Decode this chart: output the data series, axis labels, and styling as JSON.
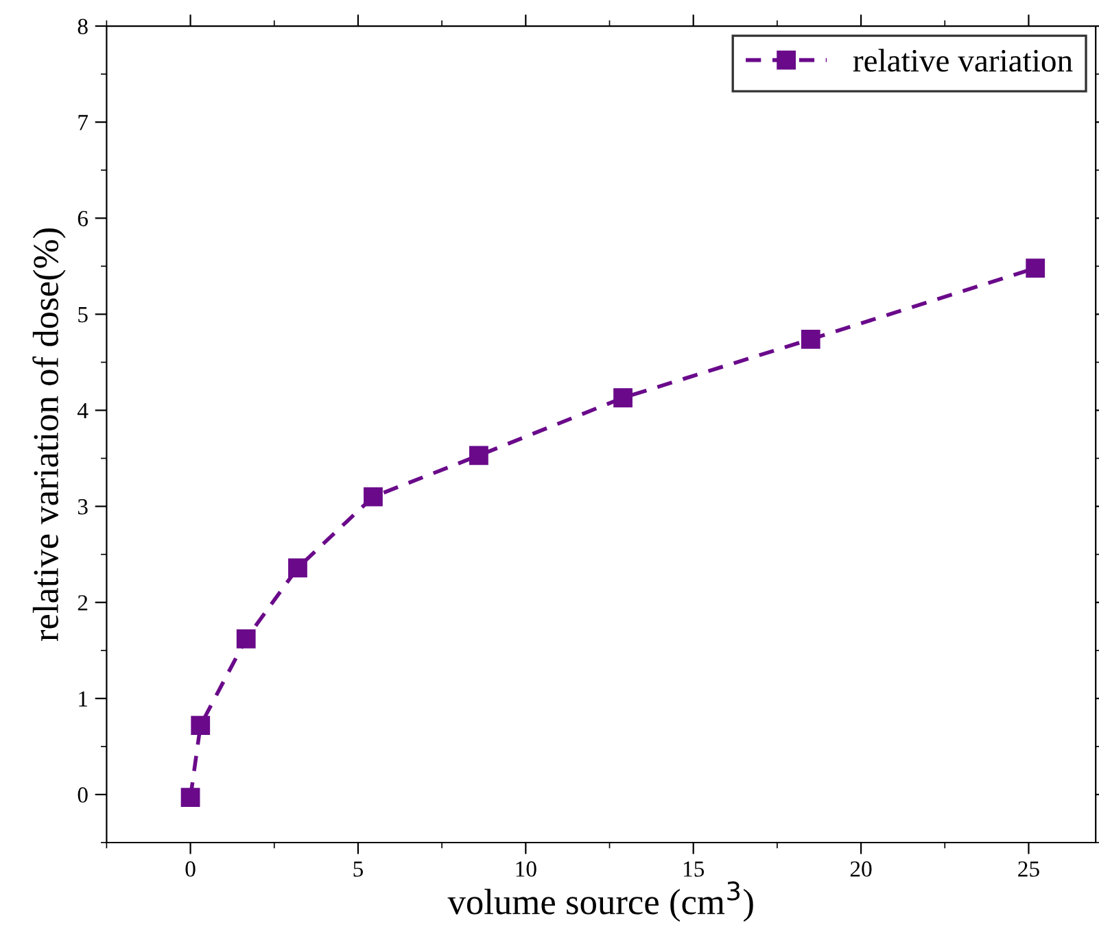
{
  "chart_data": {
    "type": "line",
    "xlabel": "volume source (cm$^{3}$)",
    "ylabel": "relative variation of dose(%)",
    "x": [
      0,
      0.3,
      1.66,
      3.2,
      5.45,
      8.6,
      12.9,
      18.5,
      25.2
    ],
    "series": [
      {
        "name": "relative variation",
        "color": "#6a0a8a",
        "values": [
          -0.03,
          0.72,
          1.62,
          2.36,
          3.1,
          3.53,
          4.13,
          4.74,
          5.48
        ]
      }
    ],
    "xlim": [
      -2.5,
      27
    ],
    "ylim": [
      -0.5,
      8
    ],
    "xticks": [
      0,
      5,
      10,
      15,
      20,
      25
    ],
    "yticks": [
      0,
      1,
      2,
      3,
      4,
      5,
      6,
      7,
      8
    ],
    "grid": false,
    "legend": "top right",
    "marker": "square",
    "line_style": "dashed"
  }
}
